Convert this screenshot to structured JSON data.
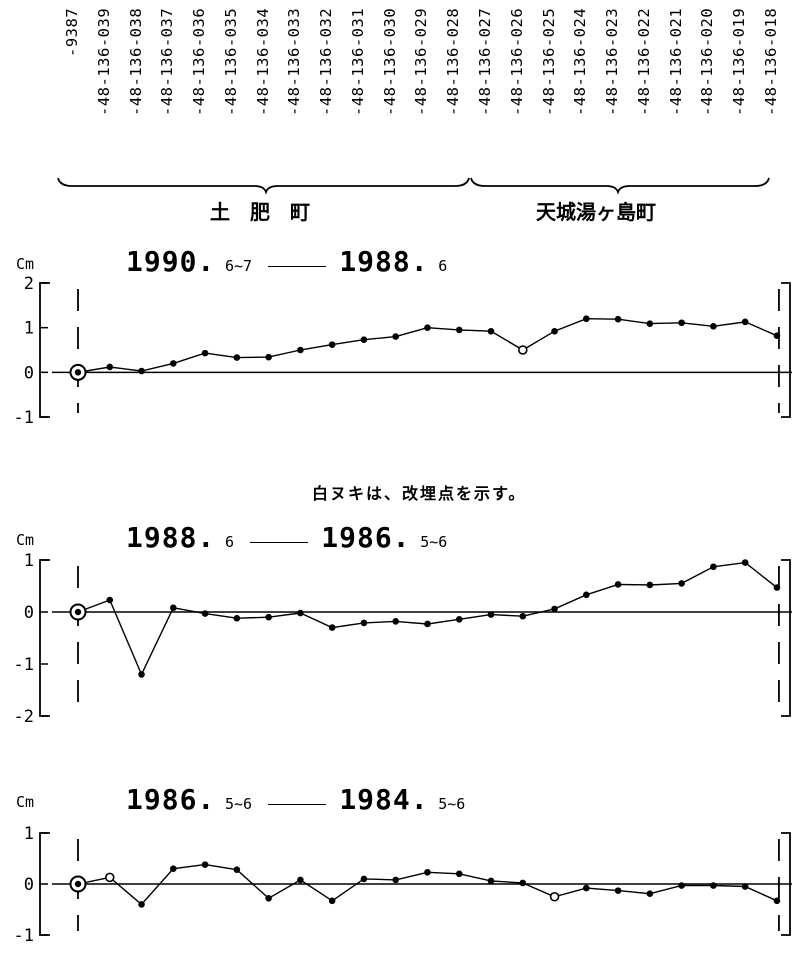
{
  "stations": [
    "-9387",
    "-48-136-039",
    "-48-136-038",
    "-48-136-037",
    "-48-136-036",
    "-48-136-035",
    "-48-136-034",
    "-48-136-033",
    "-48-136-032",
    "-48-136-031",
    "-48-136-030",
    "-48-136-029",
    "-48-136-028",
    "-48-136-027",
    "-48-136-026",
    "-48-136-025",
    "-48-136-024",
    "-48-136-023",
    "-48-136-022",
    "-48-136-021",
    "-48-136-020",
    "-48-136-019",
    "-48-136-018"
  ],
  "regions": [
    "土　肥　町",
    "天城湯ヶ島町"
  ],
  "note": "白ヌキは、改埋点を示す。",
  "chart_data": [
    {
      "type": "line",
      "title_start_year": "1990.",
      "title_start_month": "6~7",
      "title_end_year": "1988.",
      "title_end_month": "6",
      "unit": "Cm",
      "ylim": [
        -1,
        2
      ],
      "yticks": [
        2,
        1,
        0,
        -1
      ],
      "values": [
        0.0,
        0.12,
        0.03,
        0.2,
        0.43,
        0.33,
        0.34,
        0.5,
        0.62,
        0.73,
        0.8,
        1.0,
        0.95,
        0.92,
        0.5,
        0.92,
        1.2,
        1.19,
        1.09,
        1.11,
        1.03,
        1.13,
        0.82
      ],
      "open_points": [
        14
      ]
    },
    {
      "type": "line",
      "title_start_year": "1988.",
      "title_start_month": "6",
      "title_end_year": "1986.",
      "title_end_month": "5~6",
      "unit": "Cm",
      "ylim": [
        -2,
        1
      ],
      "yticks": [
        1,
        0,
        -1,
        -2
      ],
      "values": [
        0.0,
        0.23,
        -1.2,
        0.08,
        -0.03,
        -0.12,
        -0.1,
        -0.02,
        -0.3,
        -0.21,
        -0.18,
        -0.23,
        -0.14,
        -0.05,
        -0.08,
        0.06,
        0.33,
        0.53,
        0.52,
        0.55,
        0.87,
        0.95,
        0.47
      ],
      "open_points": []
    },
    {
      "type": "line",
      "title_start_year": "1986.",
      "title_start_month": "5~6",
      "title_end_year": "1984.",
      "title_end_month": "5~6",
      "unit": "Cm",
      "ylim": [
        -1,
        1
      ],
      "yticks": [
        1,
        0,
        -1
      ],
      "values": [
        0.0,
        0.13,
        -0.4,
        0.3,
        0.38,
        0.28,
        -0.28,
        0.08,
        -0.33,
        0.1,
        0.08,
        0.23,
        0.2,
        0.06,
        0.02,
        -0.25,
        -0.08,
        -0.13,
        -0.19,
        -0.03,
        -0.03,
        -0.05,
        -0.33
      ],
      "open_points": [
        1,
        15
      ]
    }
  ]
}
